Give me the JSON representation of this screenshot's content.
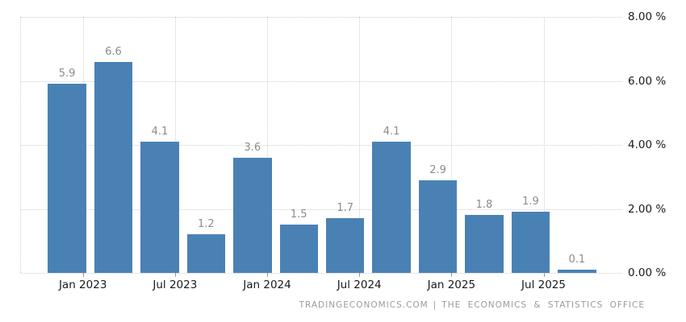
{
  "chart_data": {
    "type": "bar",
    "values": [
      5.9,
      6.6,
      4.1,
      1.2,
      3.6,
      1.5,
      1.7,
      4.1,
      2.9,
      1.8,
      1.9,
      0.1
    ],
    "bar_value_labels": [
      "5.9",
      "6.6",
      "4.1",
      "1.2",
      "3.6",
      "1.5",
      "1.7",
      "4.1",
      "2.9",
      "1.8",
      "1.9",
      "0.1"
    ],
    "x_tick_labels": [
      "Jan 2023",
      "Jul 2023",
      "Jan 2024",
      "Jul 2024",
      "Jan 2025",
      "Jul 2025"
    ],
    "y_tick_labels": [
      "8.00 %",
      "6.00 %",
      "4.00 %",
      "2.00 %",
      "0.00 %"
    ],
    "ylim": [
      0,
      8
    ],
    "y_axis_position": "right",
    "grid_style": "dotted",
    "x_ticks_at_right_edge_of_bar_indices": [
      0,
      2,
      4,
      6,
      8,
      10
    ],
    "bar_color": "#4A81B4",
    "title": "",
    "xlabel": "",
    "ylabel": ""
  },
  "colors": {
    "bar": "#4A81B4",
    "grid": "#cfcfcf",
    "axis_text": "#1a1a1a",
    "value_label_text": "#8c8c8c",
    "footer_text": "#9b9b9b",
    "background": "#ffffff"
  },
  "footer": {
    "source_primary": "TRADINGECONOMICS.COM",
    "separator": "|",
    "source_secondary": "THE ECONOMICS & STATISTICS OFFICE"
  }
}
